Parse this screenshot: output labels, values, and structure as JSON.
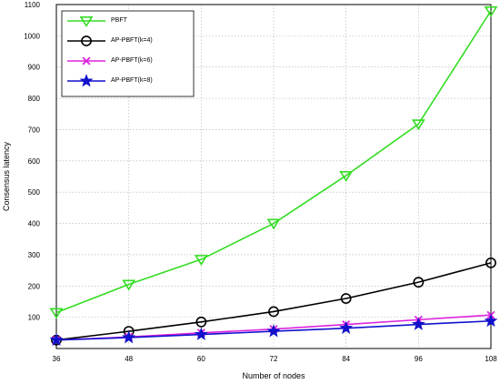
{
  "chart_data": {
    "type": "line",
    "xlabel": "Number of nodes",
    "ylabel": "Consensus latency",
    "x": [
      36,
      48,
      60,
      72,
      84,
      96,
      108
    ],
    "xlim": [
      36,
      108
    ],
    "ylim": [
      0,
      1100
    ],
    "xticks": [
      "36",
      "48",
      "60",
      "72",
      "84",
      "96",
      "108"
    ],
    "yticks": [
      "100",
      "200",
      "300",
      "400",
      "500",
      "600",
      "700",
      "800",
      "900",
      "1000",
      "1100"
    ],
    "grid": true,
    "legend_position": "top-left",
    "series": [
      {
        "name": "PBFT",
        "color": "#33dd22",
        "marker": "triangle-down",
        "values": [
          115,
          205,
          285,
          400,
          553,
          718,
          1080
        ]
      },
      {
        "name": "AP-PBFT(k=4)",
        "color": "#000000",
        "marker": "circle",
        "values": [
          27,
          55,
          85,
          118,
          160,
          212,
          274
        ]
      },
      {
        "name": "AP-PBFT(k=6)",
        "color": "#dd22dd",
        "marker": "x",
        "values": [
          27,
          37,
          50,
          62,
          77,
          92,
          107
        ]
      },
      {
        "name": "AP-PBFT(k=8)",
        "color": "#1111cc",
        "marker": "star",
        "values": [
          27,
          35,
          45,
          55,
          65,
          77,
          88
        ]
      }
    ]
  }
}
